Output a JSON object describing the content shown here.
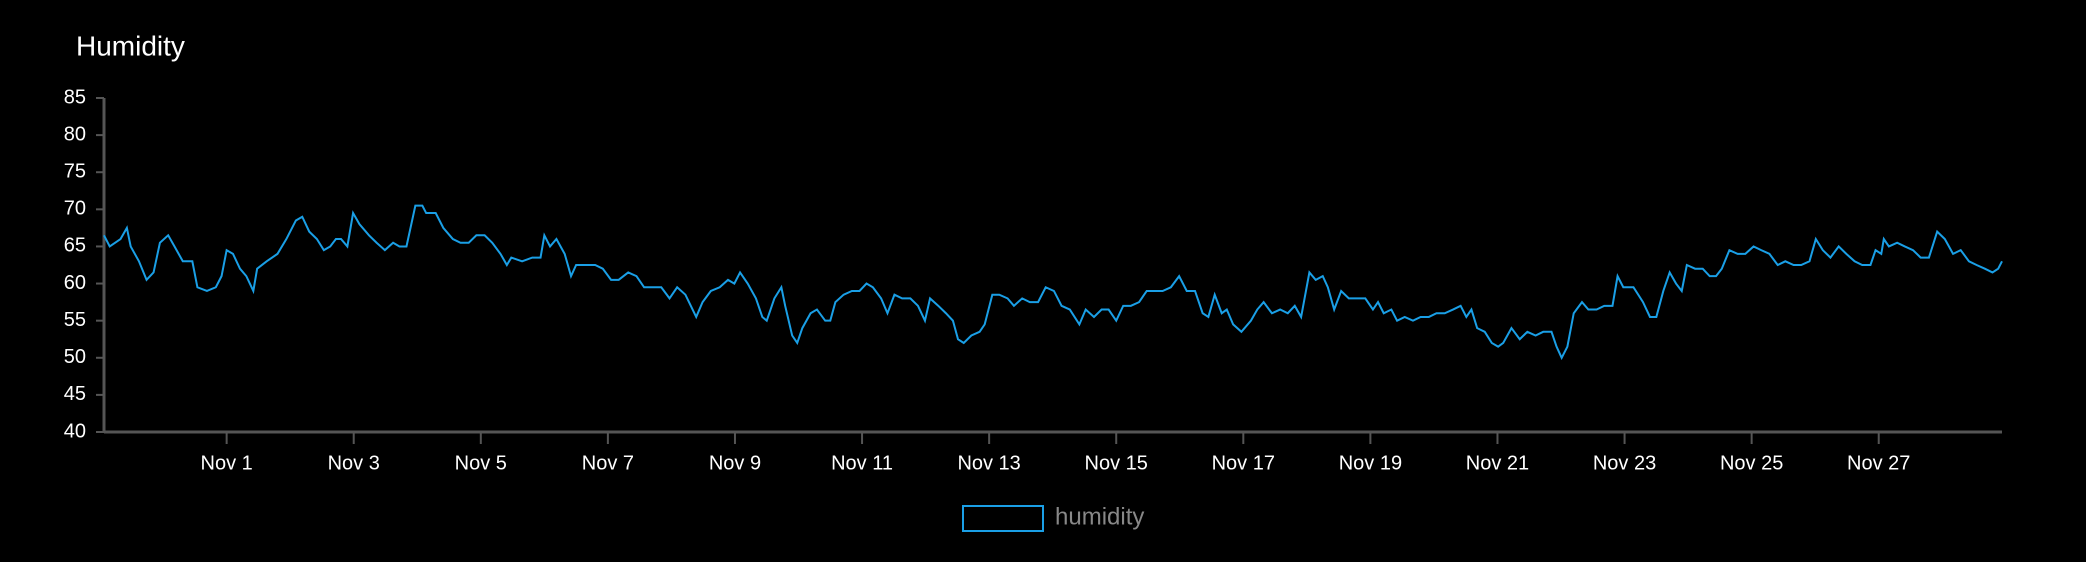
{
  "chart_data": {
    "type": "line",
    "title": "Humidity",
    "x": [
      -0.93,
      -0.84,
      -0.67,
      -0.57,
      -0.51,
      -0.38,
      -0.26,
      -0.15,
      -0.05,
      0.08,
      0.18,
      0.31,
      0.46,
      0.54,
      0.69,
      0.83,
      0.92,
      1.0,
      1.1,
      1.21,
      1.31,
      1.42,
      1.48,
      1.63,
      1.8,
      1.94,
      2.09,
      2.19,
      2.3,
      2.42,
      2.53,
      2.63,
      2.72,
      2.8,
      2.9,
      2.99,
      3.09,
      3.24,
      3.36,
      3.49,
      3.62,
      3.72,
      3.83,
      3.97,
      4.08,
      4.14,
      4.29,
      4.41,
      4.56,
      4.68,
      4.81,
      4.93,
      5.06,
      5.18,
      5.31,
      5.41,
      5.48,
      5.65,
      5.81,
      5.94,
      6.0,
      6.09,
      6.19,
      6.32,
      6.42,
      6.5,
      6.65,
      6.8,
      6.92,
      7.05,
      7.17,
      7.32,
      7.45,
      7.57,
      7.7,
      7.84,
      7.97,
      8.09,
      8.22,
      8.39,
      8.49,
      8.62,
      8.76,
      8.89,
      8.99,
      9.08,
      9.2,
      9.33,
      9.43,
      9.5,
      9.62,
      9.73,
      9.79,
      9.9,
      9.98,
      10.06,
      10.19,
      10.29,
      10.42,
      10.5,
      10.58,
      10.71,
      10.84,
      10.96,
      11.07,
      11.17,
      11.3,
      11.4,
      11.51,
      11.63,
      11.76,
      11.88,
      11.99,
      12.07,
      12.2,
      12.32,
      12.43,
      12.51,
      12.6,
      12.72,
      12.85,
      12.93,
      13.05,
      13.16,
      13.29,
      13.39,
      13.52,
      13.64,
      13.77,
      13.89,
      14.02,
      14.14,
      14.27,
      14.42,
      14.52,
      14.65,
      14.77,
      14.88,
      15.0,
      15.11,
      15.23,
      15.36,
      15.48,
      15.61,
      15.73,
      15.86,
      15.99,
      16.11,
      16.24,
      16.36,
      16.45,
      16.55,
      16.66,
      16.74,
      16.84,
      16.97,
      17.12,
      17.22,
      17.32,
      17.45,
      17.58,
      17.7,
      17.81,
      17.91,
      18.04,
      18.14,
      18.25,
      18.33,
      18.43,
      18.54,
      18.66,
      18.79,
      18.92,
      19.04,
      19.12,
      19.21,
      19.33,
      19.42,
      19.54,
      19.67,
      19.79,
      19.92,
      20.04,
      20.17,
      20.3,
      20.42,
      20.51,
      20.59,
      20.68,
      20.8,
      20.91,
      21.01,
      21.09,
      21.22,
      21.35,
      21.47,
      21.6,
      21.72,
      21.85,
      21.93,
      22.01,
      22.1,
      22.2,
      22.33,
      22.43,
      22.56,
      22.68,
      22.81,
      22.89,
      22.98,
      23.14,
      23.29,
      23.4,
      23.5,
      23.61,
      23.71,
      23.81,
      23.9,
      23.98,
      24.11,
      24.23,
      24.34,
      24.44,
      24.53,
      24.65,
      24.78,
      24.9,
      25.03,
      25.15,
      25.28,
      25.41,
      25.53,
      25.66,
      25.78,
      25.91,
      26.01,
      26.12,
      26.24,
      26.37,
      26.49,
      26.62,
      26.74,
      26.87,
      26.95,
      27.04,
      27.08,
      27.16,
      27.29,
      27.41,
      27.54,
      27.66,
      27.79,
      27.92,
      28.04,
      28.17,
      28.29,
      28.42,
      28.54,
      28.67,
      28.79,
      28.88,
      28.94
    ],
    "series": [
      {
        "name": "humidity",
        "color": "#1a9fe6",
        "values": [
          66.5,
          65,
          66,
          67.5,
          65,
          63,
          60.5,
          61.5,
          65.5,
          66.5,
          65,
          63,
          63,
          59.5,
          59,
          59.5,
          61,
          64.5,
          64,
          62,
          61,
          59,
          62,
          63,
          64,
          66,
          68.5,
          69,
          67,
          66,
          64.5,
          65,
          66,
          66,
          65,
          69.5,
          68,
          66.5,
          65.5,
          64.5,
          65.5,
          65,
          65,
          70.5,
          70.5,
          69.5,
          69.5,
          67.5,
          66,
          65.5,
          65.5,
          66.5,
          66.5,
          65.5,
          64,
          62.5,
          63.5,
          63,
          63.5,
          63.5,
          66.5,
          65,
          66,
          64,
          61,
          62.5,
          62.5,
          62.5,
          62,
          60.5,
          60.5,
          61.5,
          61,
          59.5,
          59.5,
          59.5,
          58,
          59.5,
          58.5,
          55.5,
          57.5,
          59,
          59.5,
          60.5,
          60,
          61.5,
          60,
          58,
          55.5,
          55,
          58,
          59.5,
          57,
          53,
          52,
          54,
          56,
          56.5,
          55,
          55,
          57.5,
          58.5,
          59,
          59,
          60,
          59.5,
          58,
          56,
          58.5,
          58,
          58,
          57,
          55,
          58,
          57,
          56,
          55,
          52.5,
          52,
          53,
          53.5,
          54.5,
          58.5,
          58.5,
          58,
          57,
          58,
          57.5,
          57.5,
          59.5,
          59,
          57,
          56.5,
          54.5,
          56.5,
          55.5,
          56.5,
          56.5,
          55,
          57,
          57,
          57.5,
          59,
          59,
          59,
          59.5,
          61,
          59,
          59,
          56,
          55.5,
          58.5,
          56,
          56.5,
          54.5,
          53.5,
          55,
          56.5,
          57.5,
          56,
          56.5,
          56,
          57,
          55.5,
          61.5,
          60.5,
          61,
          59.5,
          56.5,
          59,
          58,
          58,
          58,
          56.5,
          57.5,
          56,
          56.5,
          55,
          55.5,
          55,
          55.5,
          55.5,
          56,
          56,
          56.5,
          57,
          55.5,
          56.5,
          54,
          53.5,
          52,
          51.5,
          52,
          54,
          52.5,
          53.5,
          53,
          53.5,
          53.5,
          51.5,
          50,
          51.5,
          56,
          57.5,
          56.5,
          56.5,
          57,
          57,
          61,
          59.5,
          59.5,
          57.5,
          55.5,
          55.5,
          59,
          61.5,
          60,
          59,
          62.5,
          62,
          62,
          61,
          61,
          62,
          64.5,
          64,
          64,
          65,
          64.5,
          64,
          62.5,
          63,
          62.5,
          62.5,
          63,
          66,
          64.5,
          63.5,
          65,
          64,
          63,
          62.5,
          62.5,
          64.5,
          64,
          66,
          65,
          65.5,
          65,
          64.5,
          63.5,
          63.5,
          67,
          66,
          64,
          64.5,
          63,
          62.5,
          62,
          61.5,
          62,
          63
        ]
      }
    ],
    "xlim": [
      -0.93,
      28.94
    ],
    "xticks": [
      {
        "value": 1,
        "label": "Nov 1"
      },
      {
        "value": 3,
        "label": "Nov 3"
      },
      {
        "value": 5,
        "label": "Nov 5"
      },
      {
        "value": 7,
        "label": "Nov 7"
      },
      {
        "value": 9,
        "label": "Nov 9"
      },
      {
        "value": 11,
        "label": "Nov 11"
      },
      {
        "value": 13,
        "label": "Nov 13"
      },
      {
        "value": 15,
        "label": "Nov 15"
      },
      {
        "value": 17,
        "label": "Nov 17"
      },
      {
        "value": 19,
        "label": "Nov 19"
      },
      {
        "value": 21,
        "label": "Nov 21"
      },
      {
        "value": 23,
        "label": "Nov 23"
      },
      {
        "value": 25,
        "label": "Nov 25"
      },
      {
        "value": 27,
        "label": "Nov 27"
      }
    ],
    "ylim": [
      40,
      85
    ],
    "yticks": [
      40,
      45,
      50,
      55,
      60,
      65,
      70,
      75,
      80,
      85
    ],
    "grid": false,
    "legend": "bottom"
  }
}
